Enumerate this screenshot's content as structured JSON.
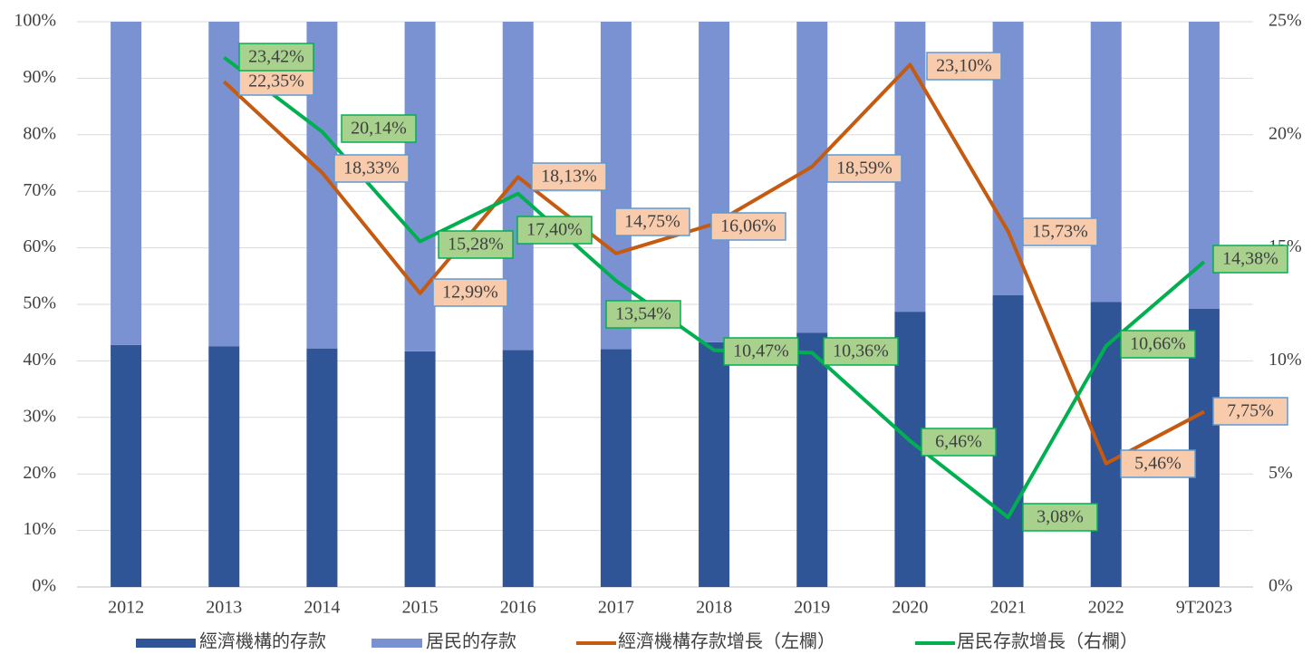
{
  "chart_data": {
    "type": "bar",
    "stacked": true,
    "categories": [
      "2012",
      "2013",
      "2014",
      "2015",
      "2016",
      "2017",
      "2018",
      "2019",
      "2020",
      "2021",
      "2022",
      "9T2023"
    ],
    "ylim": [
      0,
      100
    ],
    "yticks": [
      {
        "value": 0,
        "label": "0%"
      },
      {
        "value": 10,
        "label": "10%"
      },
      {
        "value": 20,
        "label": "20%"
      },
      {
        "value": 30,
        "label": "30%"
      },
      {
        "value": 40,
        "label": "40%"
      },
      {
        "value": 50,
        "label": "50%"
      },
      {
        "value": 60,
        "label": "60%"
      },
      {
        "value": 70,
        "label": "70%"
      },
      {
        "value": 80,
        "label": "80%"
      },
      {
        "value": 90,
        "label": "90%"
      },
      {
        "value": 100,
        "label": "100%"
      }
    ],
    "y2lim": [
      0,
      25
    ],
    "y2ticks": [
      {
        "value": 0,
        "label": "0%"
      },
      {
        "value": 5,
        "label": "5%"
      },
      {
        "value": 10,
        "label": "10%"
      },
      {
        "value": 15,
        "label": "15%"
      },
      {
        "value": 20,
        "label": "20%"
      },
      {
        "value": 25,
        "label": "25%"
      }
    ],
    "grid": true,
    "legend": "bottom",
    "series": [
      {
        "name": "經濟機構的存款",
        "type": "bar",
        "color": "#2f5597",
        "values": [
          42.8,
          42.6,
          42.2,
          41.7,
          41.9,
          42.1,
          43.3,
          45.0,
          48.7,
          51.6,
          50.4,
          49.2
        ]
      },
      {
        "name": "居民的存款",
        "type": "bar",
        "color": "#7a92d2",
        "values": [
          57.2,
          57.4,
          57.8,
          58.3,
          58.1,
          57.9,
          56.7,
          55.0,
          51.3,
          48.4,
          49.6,
          50.8
        ]
      },
      {
        "name": "經濟機構存款增長（左欄）",
        "type": "line",
        "axis": "y2",
        "color": "#c55a11",
        "label_fill": "#f8cbad",
        "label_border": "#5b9bd5",
        "values": [
          null,
          22.35,
          18.33,
          12.99,
          18.13,
          14.75,
          16.06,
          18.59,
          23.1,
          15.73,
          5.46,
          7.75
        ],
        "value_labels": [
          null,
          "22,35%",
          "18,33%",
          "12,99%",
          "18,13%",
          "14,75%",
          "16,06%",
          "18,59%",
          "23,10%",
          "15,73%",
          "5,46%",
          "7,75%"
        ]
      },
      {
        "name": "居民存款增長（右欄）",
        "type": "line",
        "axis": "y2",
        "color": "#00b050",
        "label_fill": "#a9d18e",
        "label_border": "#00b050",
        "values": [
          null,
          23.42,
          20.14,
          15.28,
          17.4,
          13.54,
          10.47,
          10.36,
          6.46,
          3.08,
          10.66,
          14.38
        ],
        "value_labels": [
          null,
          "23,42%",
          "20,14%",
          "15,28%",
          "17,40%",
          "13,54%",
          "10,47%",
          "10,36%",
          "6,46%",
          "3,08%",
          "10,66%",
          "14,38%"
        ]
      }
    ]
  }
}
